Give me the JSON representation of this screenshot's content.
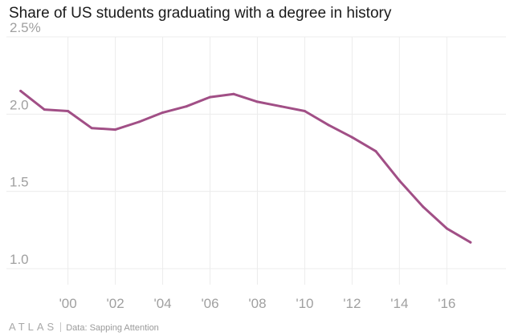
{
  "chart_data": {
    "type": "line",
    "title": "Share of US students graduating with a degree in history",
    "xlabel": "",
    "ylabel": "",
    "x": [
      1998,
      1999,
      2000,
      2001,
      2002,
      2003,
      2004,
      2005,
      2006,
      2007,
      2008,
      2009,
      2010,
      2011,
      2012,
      2013,
      2014,
      2015,
      2016,
      2017
    ],
    "series": [
      {
        "values": [
          2.15,
          2.03,
          2.02,
          1.91,
          1.9,
          1.95,
          2.01,
          2.05,
          2.11,
          2.13,
          2.08,
          2.05,
          2.02,
          1.93,
          1.85,
          1.76,
          1.57,
          1.4,
          1.26,
          1.17
        ]
      }
    ],
    "ylim": [
      1.0,
      2.5
    ],
    "xlim": [
      1997.4,
      2018.5
    ],
    "x_ticks": [
      {
        "value": 2000,
        "label": "'00"
      },
      {
        "value": 2002,
        "label": "'02"
      },
      {
        "value": 2004,
        "label": "'04"
      },
      {
        "value": 2006,
        "label": "'06"
      },
      {
        "value": 2008,
        "label": "'08"
      },
      {
        "value": 2010,
        "label": "'10"
      },
      {
        "value": 2012,
        "label": "'12"
      },
      {
        "value": 2014,
        "label": "'14"
      },
      {
        "value": 2016,
        "label": "'16"
      }
    ],
    "y_ticks": [
      {
        "value": 1.0,
        "label": "1.0"
      },
      {
        "value": 1.5,
        "label": "1.5"
      },
      {
        "value": 2.0,
        "label": "2.0"
      },
      {
        "value": 2.5,
        "label": "2.5%"
      }
    ],
    "grid": true,
    "line_color": "#a14f86"
  },
  "footer": {
    "brand": "ATLAS",
    "source": "Data: Sapping Attention"
  }
}
